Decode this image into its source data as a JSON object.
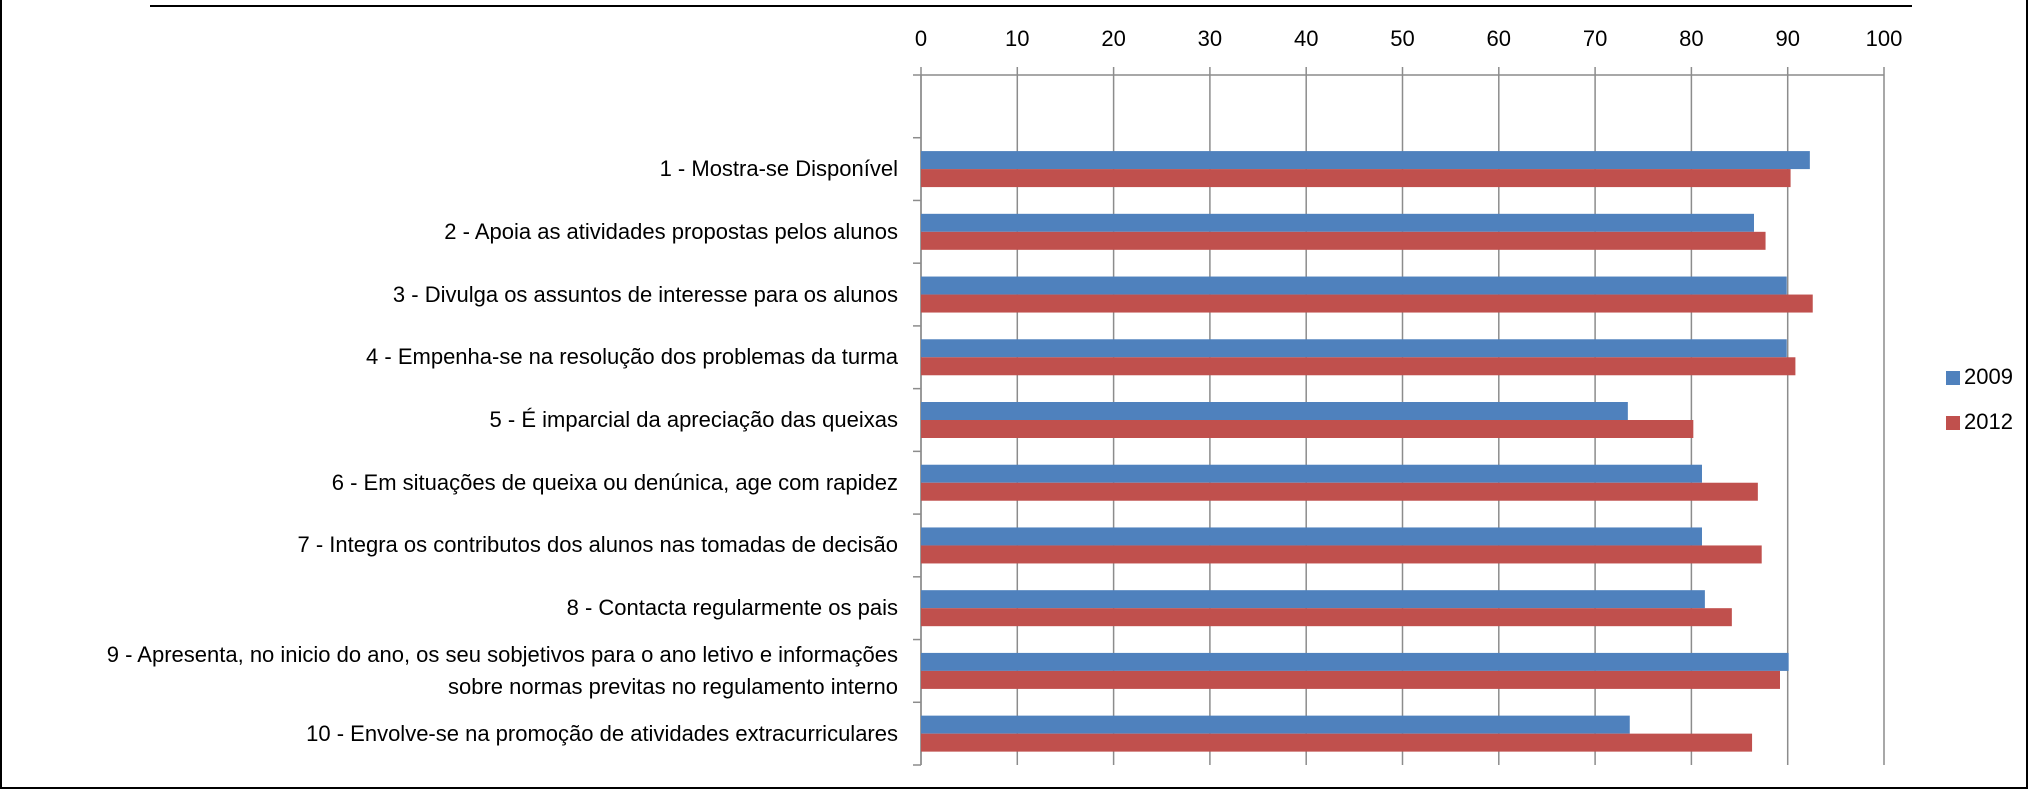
{
  "chart_data": {
    "type": "bar",
    "orientation": "horizontal",
    "categories": [
      null,
      "1 - Mostra-se Disponível",
      "2 - Apoia as atividades propostas pelos alunos",
      "3 - Divulga os assuntos de interesse para os alunos",
      "4 - Empenha-se na resolução dos problemas da turma",
      "5 - É imparcial da apreciação das queixas",
      "6 - Em situações de queixa ou denúnica, age com rapidez",
      "7 - Integra os contributos dos alunos nas tomadas de decisão",
      "8 - Contacta regularmente os pais",
      "9 - Apresenta, no inicio do ano, os seu sobjetivos para o ano letivo e informações\nsobre normas previtas no regulamento interno",
      "10 - Envolve-se na promoção de atividades extracurriculares"
    ],
    "series": [
      {
        "name": "2009",
        "color": "#4f81bd",
        "values": [
          null,
          92.3,
          86.5,
          89.9,
          89.9,
          73.4,
          81.1,
          81.1,
          81.4,
          90.1,
          73.6
        ]
      },
      {
        "name": "2012",
        "color": "#c0504d",
        "values": [
          null,
          90.3,
          87.7,
          92.6,
          90.8,
          80.2,
          86.9,
          87.3,
          84.2,
          89.2,
          86.3
        ]
      }
    ],
    "xlim": [
      0,
      100
    ],
    "xticks": [
      0,
      10,
      20,
      30,
      40,
      50,
      60,
      70,
      80,
      90,
      100
    ],
    "grid": true,
    "legend": "right"
  }
}
